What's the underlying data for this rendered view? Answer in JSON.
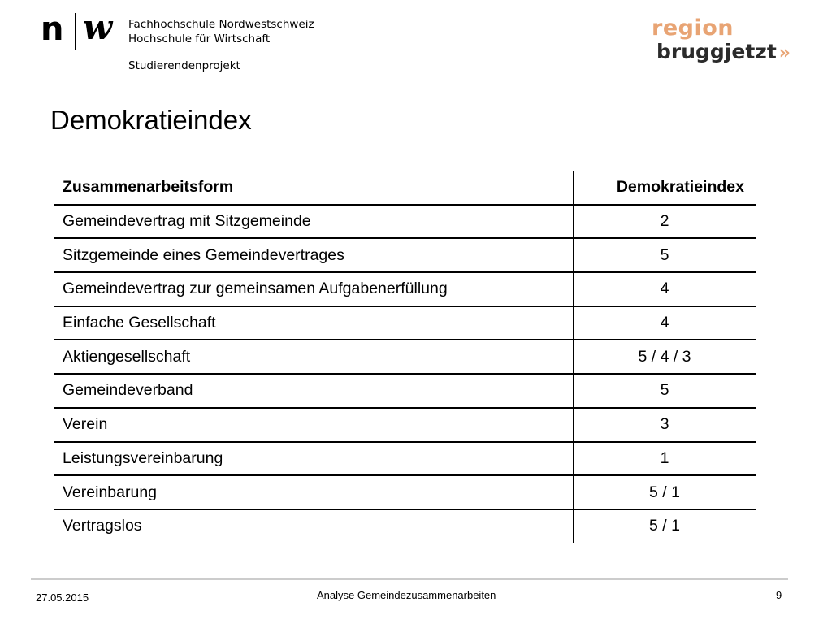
{
  "header": {
    "logo_left": {
      "n": "n",
      "w": "w"
    },
    "school_line1": "Fachhochschule Nordwestschweiz",
    "school_line2": "Hochschule für Wirtschaft",
    "project": "Studierendenprojekt",
    "logo_right": {
      "top": "region",
      "bottom": "bruggjetzt",
      "chevron": "»",
      "color_accent": "#E8A474"
    }
  },
  "title": "Demokratieindex",
  "table": {
    "headers": [
      "Zusammenarbeitsform",
      "Demokratieindex"
    ],
    "rows": [
      [
        "Gemeindevertrag mit Sitzgemeinde",
        "2"
      ],
      [
        "Sitzgemeinde eines Gemeindevertrages",
        "5"
      ],
      [
        "Gemeindevertrag zur gemeinsamen Aufgabenerfüllung",
        "4"
      ],
      [
        "Einfache Gesellschaft",
        "4"
      ],
      [
        "Aktiengesellschaft",
        "5 / 4 / 3"
      ],
      [
        "Gemeindeverband",
        "5"
      ],
      [
        "Verein",
        "3"
      ],
      [
        "Leistungsvereinbarung",
        "1"
      ],
      [
        "Vereinbarung",
        "5 / 1"
      ],
      [
        "Vertragslos",
        "5 / 1"
      ]
    ]
  },
  "footer": {
    "date": "27.05.2015",
    "title": "Analyse Gemeindezusammenarbeiten",
    "page": "9"
  }
}
